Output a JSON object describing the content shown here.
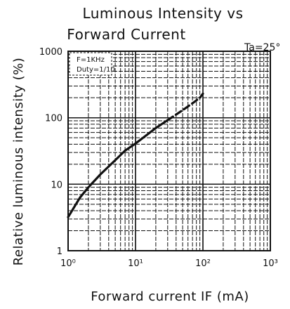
{
  "chart_data": {
    "type": "line",
    "title": "Luminous Intensity vs Forward Current",
    "title_lines": [
      "Luminous Intensity vs",
      "Forward Current"
    ],
    "condition": "Ta=25°",
    "xlabel": "Forward current IF (mA)",
    "ylabel": "Relative luminous intensity (%)",
    "x_scale": "log",
    "y_scale": "log",
    "xlim": [
      1,
      1000
    ],
    "ylim": [
      1,
      1000
    ],
    "x_ticks": [
      {
        "value": 1,
        "label": "10⁰"
      },
      {
        "value": 10,
        "label": "10¹"
      },
      {
        "value": 100,
        "label": "10²"
      },
      {
        "value": 1000,
        "label": "10³"
      }
    ],
    "y_ticks": [
      {
        "value": 1,
        "label": "1"
      },
      {
        "value": 10,
        "label": "10"
      },
      {
        "value": 100,
        "label": "100"
      },
      {
        "value": 1000,
        "label": "1000"
      }
    ],
    "grid": true,
    "legend": {
      "placement": "top-left",
      "lines": [
        "F=1KHz",
        "Duty=1/10"
      ]
    },
    "series": [
      {
        "style": "solid",
        "color": "#111111",
        "x": [
          1,
          1.5,
          2,
          3,
          5,
          7,
          10,
          15,
          20,
          30
        ],
        "y": [
          3.2,
          6.3,
          9,
          14,
          23,
          32,
          41,
          56,
          70,
          92
        ]
      },
      {
        "style": "dashed",
        "color": "#111111",
        "x": [
          30,
          50,
          70,
          90,
          100
        ],
        "y": [
          92,
          130,
          165,
          200,
          230
        ]
      }
    ]
  }
}
